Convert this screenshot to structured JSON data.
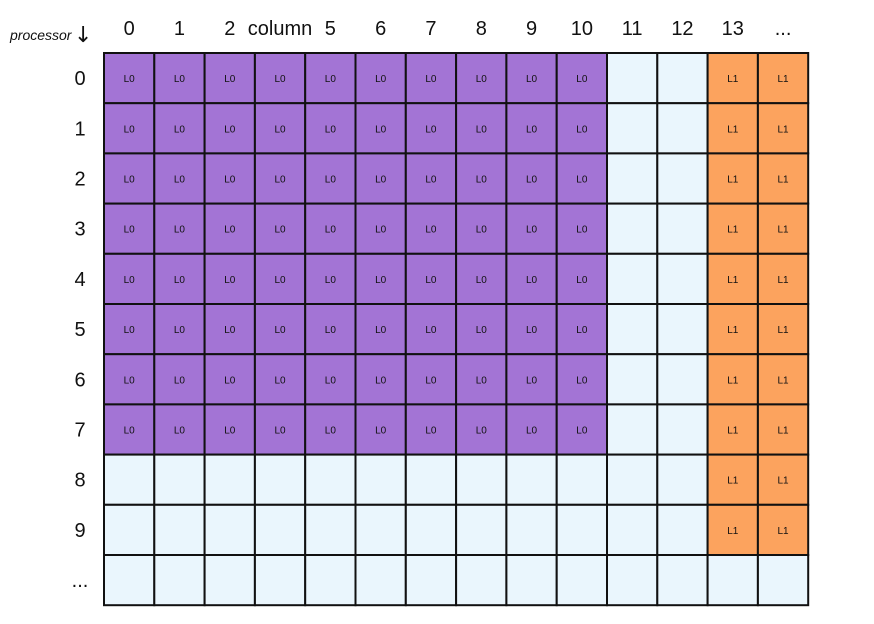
{
  "corner_label": "processor",
  "corner_arrow": "↓",
  "column_headers": [
    "0",
    "1",
    "2",
    "column",
    "5",
    "6",
    "7",
    "8",
    "9",
    "10",
    "11",
    "12",
    "13",
    "..."
  ],
  "row_headers": [
    "0",
    "1",
    "2",
    "3",
    "4",
    "5",
    "6",
    "7",
    "8",
    "9",
    "..."
  ],
  "colors": {
    "L0": "#a374d5",
    "L1": "#fca35e",
    "empty": "#eaf6fd",
    "border": "#111111"
  },
  "blocks": [
    {
      "label": "L0",
      "rows": [
        0,
        7
      ],
      "cols": [
        0,
        9
      ]
    },
    {
      "label": "L1",
      "rows": [
        0,
        9
      ],
      "cols": [
        12,
        13
      ]
    }
  ]
}
